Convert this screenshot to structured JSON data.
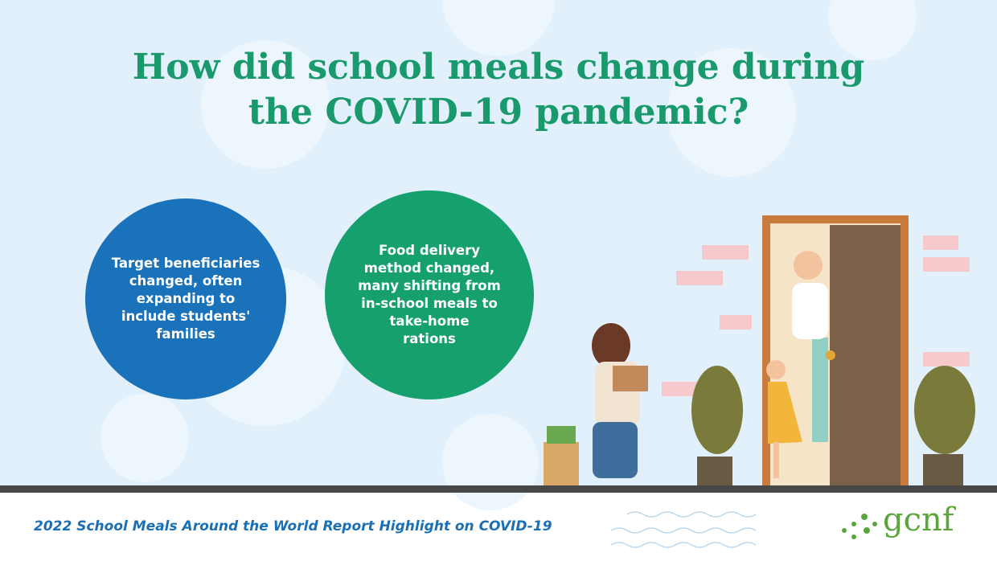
{
  "header": {
    "title_lines": [
      "How did school meals change during",
      "the COVID-19 pandemic?"
    ]
  },
  "points": [
    {
      "lines": [
        "Target beneficiaries",
        "changed, often",
        "expanding to",
        "include students'",
        "families"
      ]
    },
    {
      "lines": [
        "Food delivery",
        "method changed,",
        "many shifting from",
        "in-school meals to",
        "take-home",
        "rations"
      ]
    }
  ],
  "footer": {
    "text": "2022 School Meals Around the World Report Highlight on COVID-19",
    "logo": "gcnf"
  }
}
